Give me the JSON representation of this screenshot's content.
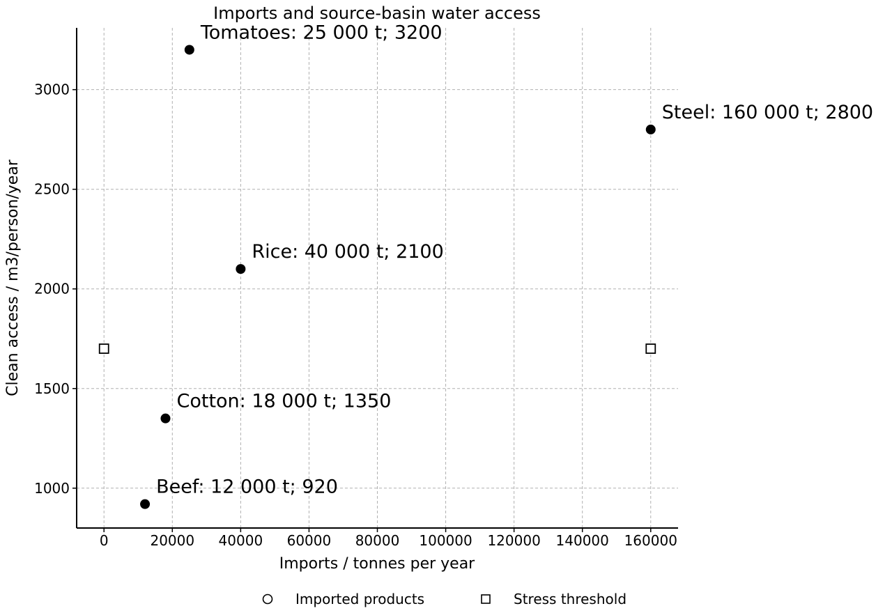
{
  "chart_data": {
    "type": "scatter",
    "title": "Imports and source-basin water access",
    "xlabel": "Imports / tonnes per year",
    "ylabel": "Clean access / m3/person/year",
    "xlim": [
      -8000,
      168000
    ],
    "ylim": [
      800,
      3310
    ],
    "x_ticks": [
      0,
      20000,
      40000,
      60000,
      80000,
      100000,
      120000,
      140000,
      160000
    ],
    "x_tick_labels": [
      "0",
      "20000",
      "40000",
      "60000",
      "80000",
      "100000",
      "120000",
      "140000",
      "160000"
    ],
    "y_ticks": [
      1000,
      1500,
      2000,
      2500,
      3000
    ],
    "y_tick_labels": [
      "1000",
      "1500",
      "2000",
      "2500",
      "3000"
    ],
    "grid": true,
    "legend_position": "bottom-center",
    "series": [
      {
        "name": "Imported products",
        "marker": "circle",
        "color": "#000000",
        "points": [
          {
            "x": 25000,
            "y": 3200,
            "label": "Tomatoes: 25 000 t; 3200"
          },
          {
            "x": 160000,
            "y": 2800,
            "label": "Steel: 160 000 t; 2800"
          },
          {
            "x": 40000,
            "y": 2100,
            "label": "Rice: 40 000 t; 2100"
          },
          {
            "x": 18000,
            "y": 1350,
            "label": "Cotton: 18 000 t; 1350"
          },
          {
            "x": 12000,
            "y": 920,
            "label": "Beef: 12 000 t; 920"
          }
        ]
      },
      {
        "name": "Stress threshold",
        "marker": "square",
        "color": "#000000",
        "points": [
          {
            "x": 0,
            "y": 1700
          },
          {
            "x": 160000,
            "y": 1700
          }
        ]
      }
    ]
  }
}
